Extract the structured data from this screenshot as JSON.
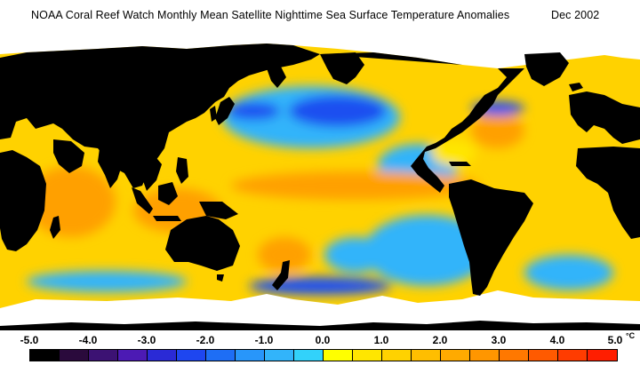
{
  "title": {
    "main": "NOAA Coral Reef Watch Monthly Mean Satellite Nighttime Sea Surface Temperature Anomalies",
    "date": "Dec 2002"
  },
  "legend": {
    "ticks": [
      "-5.0",
      "-4.0",
      "-3.0",
      "-2.0",
      "-1.0",
      "0.0",
      "1.0",
      "2.0",
      "3.0",
      "4.0",
      "5.0"
    ],
    "unit": "°C",
    "colors": [
      "#000000",
      "#2a0a3c",
      "#3c1273",
      "#4c1ab4",
      "#2a2ad6",
      "#1e46f0",
      "#1e6ef5",
      "#2896fa",
      "#32b4fa",
      "#32d2fa",
      "#ffff00",
      "#ffe600",
      "#ffd200",
      "#ffbe00",
      "#ffaa00",
      "#ff9600",
      "#ff7800",
      "#ff5a00",
      "#ff3c00",
      "#ff1e00"
    ]
  },
  "map": {
    "palette": {
      "land": "#000000",
      "ice": "#ffffff",
      "ocean_warm": "#ffd200",
      "ocean_mild": "#ffe600",
      "ocean_orange": "#ffa000",
      "ocean_cool": "#32b4fa",
      "ocean_cold": "#1e50f0",
      "ocean_deep": "#3c1273",
      "ocean_hot": "#ff3c00"
    }
  }
}
